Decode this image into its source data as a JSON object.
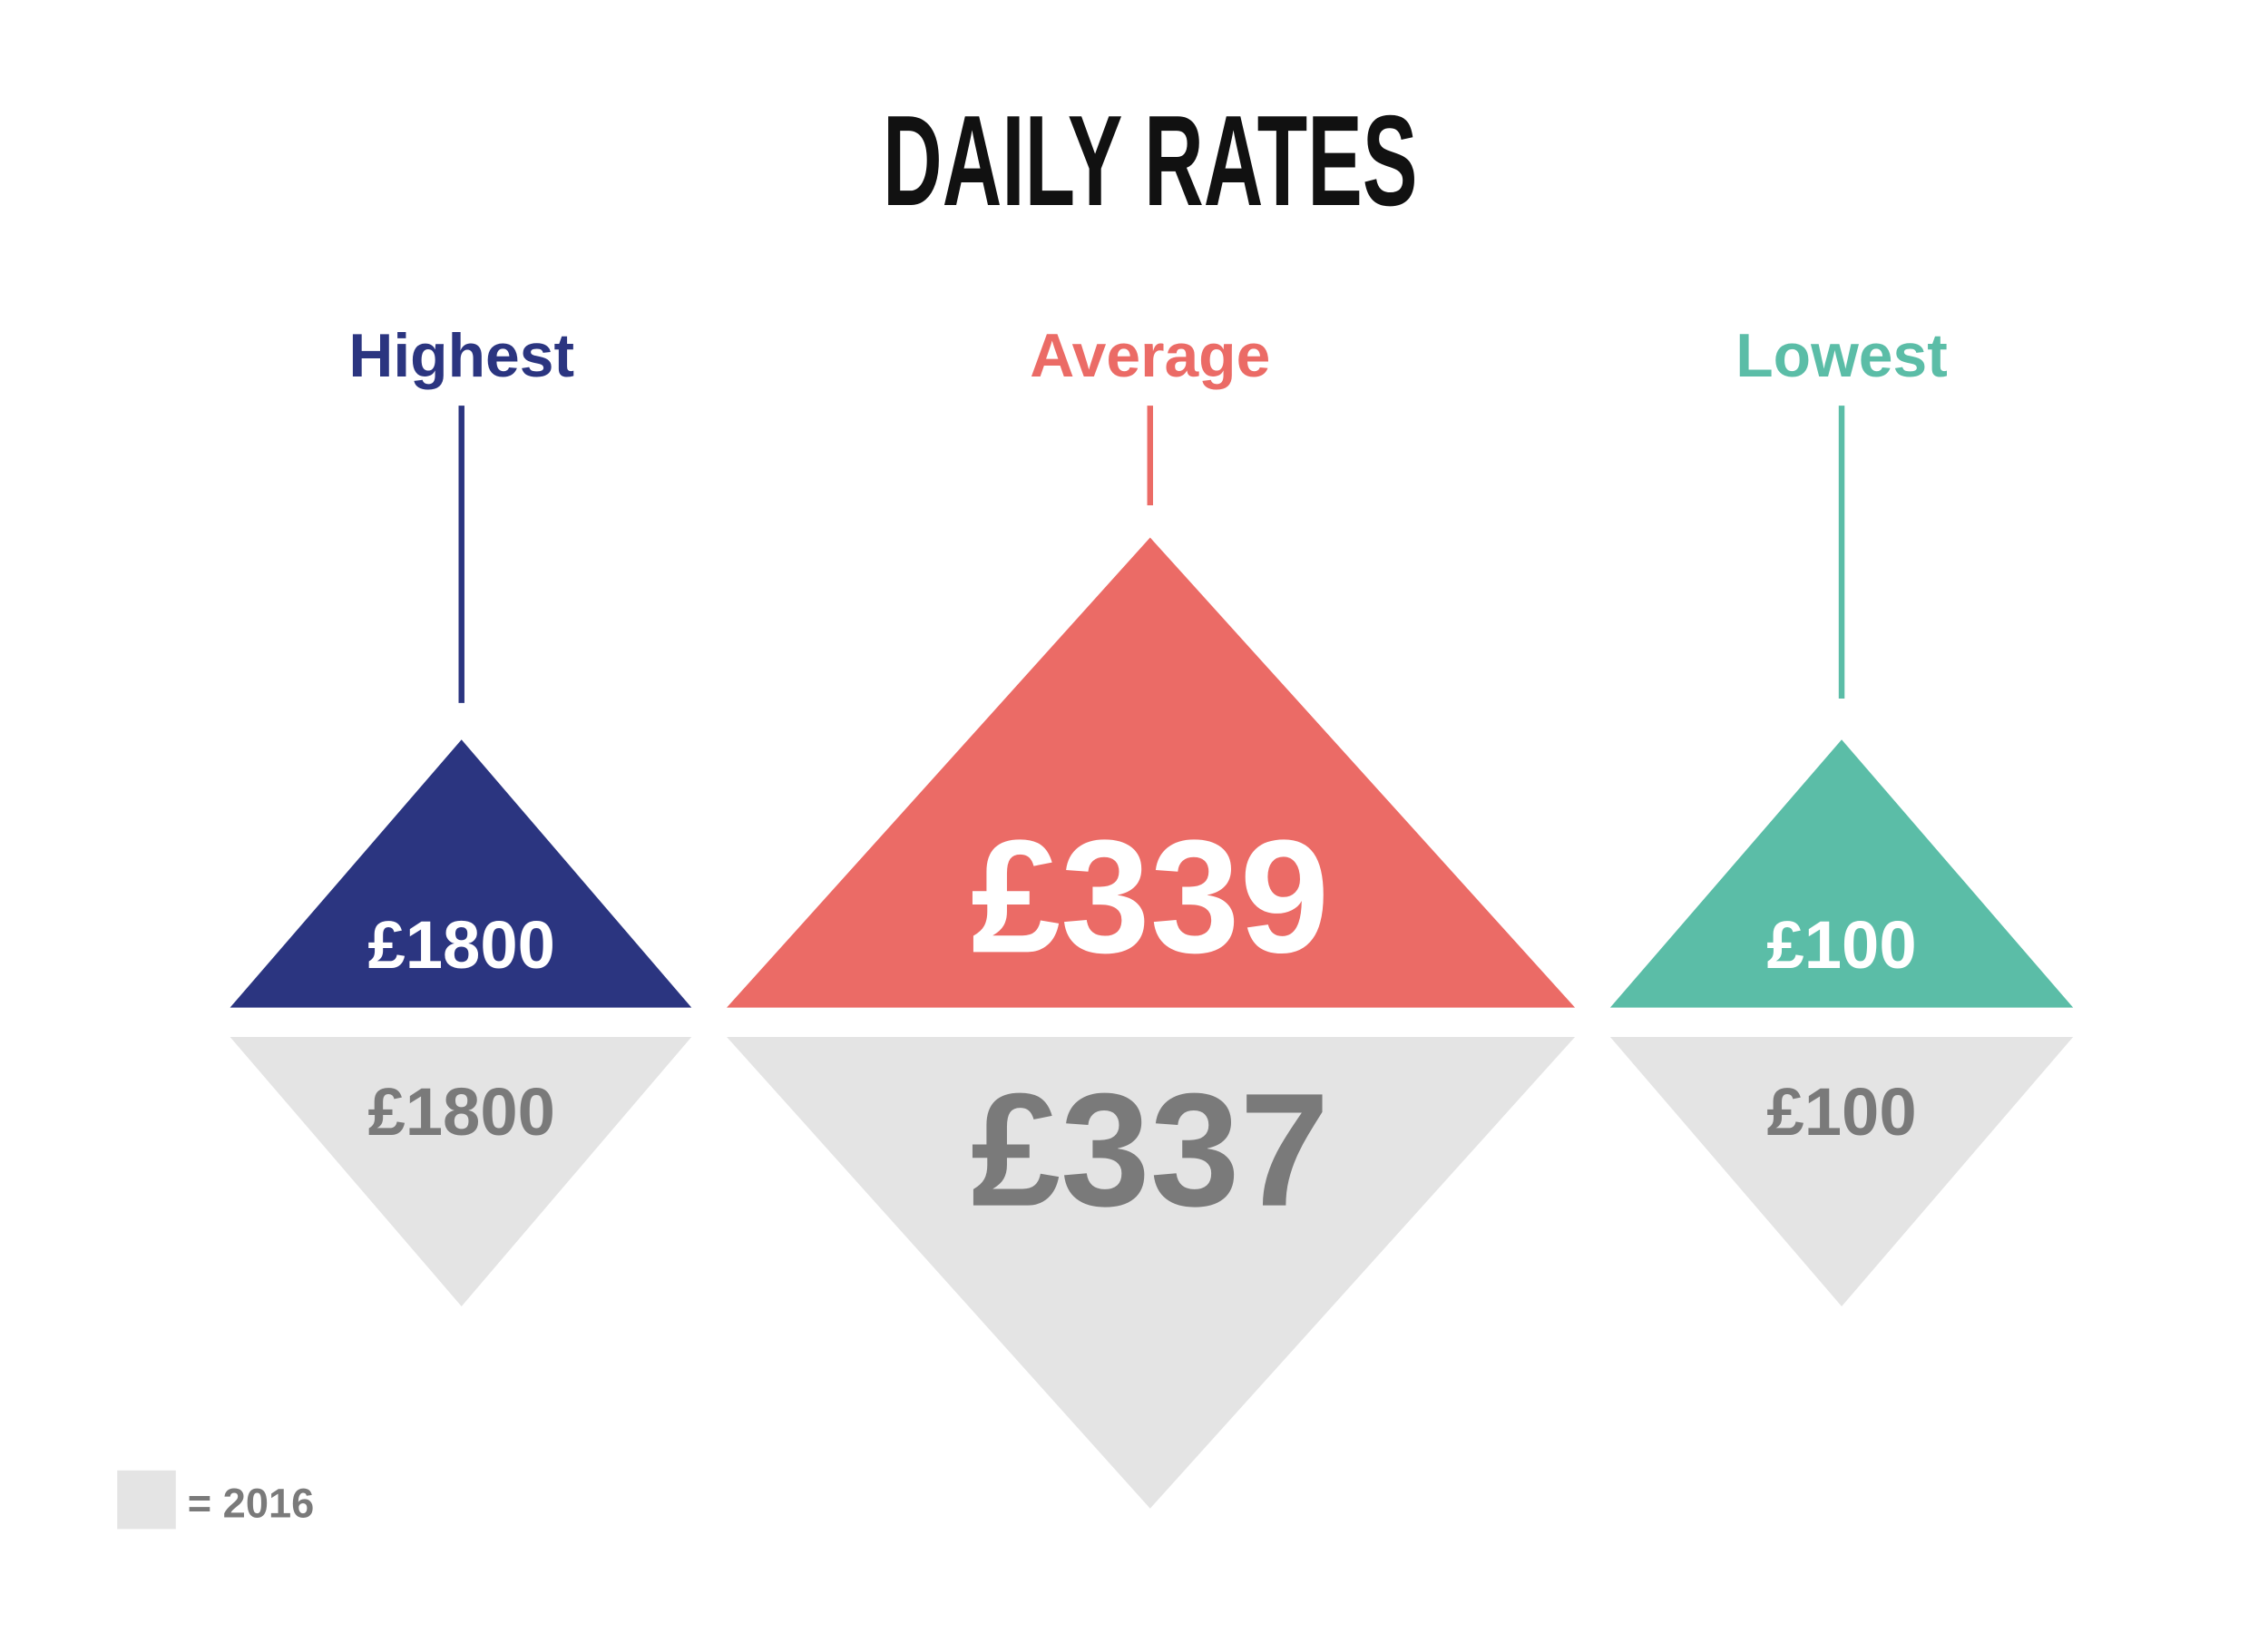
{
  "title": "DAILY RATES",
  "items": [
    {
      "label": "Highest",
      "current": "£1800",
      "previous": "£1800"
    },
    {
      "label": "Average",
      "current": "£339",
      "previous": "£337"
    },
    {
      "label": "Lowest",
      "current": "£100",
      "previous": "£100"
    }
  ],
  "legend": {
    "label": "= 2016"
  }
}
